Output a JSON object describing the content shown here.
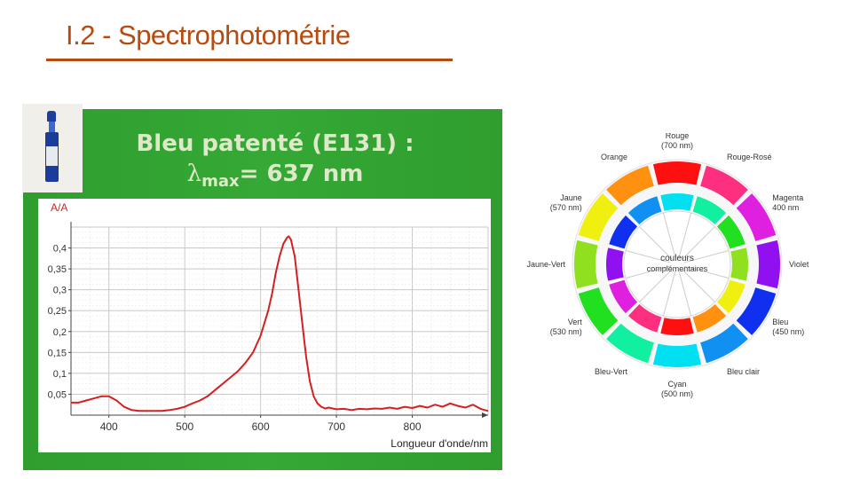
{
  "slide": {
    "title": "I.2 - Spectrophotométrie"
  },
  "vial_image": {
    "icon": "blue-dye-vial-icon"
  },
  "chart_heading": {
    "line1": "Bleu patenté (E131) :",
    "lambda_symbol": "λ",
    "lambda_sub": "max",
    "lambda_value": "= 637 nm"
  },
  "chart_data": {
    "type": "line",
    "title": "Bleu patenté (E131) : λmax= 637 nm",
    "ylabel": "A/A",
    "xlabel": "Longueur d'onde/nm",
    "xlim": [
      350,
      900
    ],
    "ylim": [
      0,
      0.45
    ],
    "x_ticks": [
      400,
      500,
      600,
      700,
      800
    ],
    "x_tick_labels": [
      "400",
      "500",
      "600",
      "700",
      "800"
    ],
    "y_ticks": [
      0.05,
      0.1,
      0.15,
      0.2,
      0.25,
      0.3,
      0.35,
      0.4
    ],
    "y_tick_labels": [
      "0,05",
      "0,1",
      "0,15",
      "0,2",
      "0,25",
      "0,3",
      "0,35",
      "0,4"
    ],
    "grid": true,
    "series_color": "#d42020",
    "series": [
      {
        "x": [
          350,
          360,
          370,
          380,
          390,
          400,
          410,
          420,
          430,
          440,
          450,
          460,
          470,
          480,
          490,
          500,
          510,
          520,
          530,
          540,
          550,
          560,
          570,
          580,
          590,
          600,
          610,
          615,
          620,
          625,
          630,
          635,
          637,
          640,
          645,
          650,
          655,
          660,
          665,
          670,
          675,
          680,
          685,
          690,
          695,
          700,
          710,
          720,
          730,
          740,
          750,
          760,
          770,
          780,
          790,
          800,
          810,
          820,
          830,
          840,
          850,
          860,
          870,
          880,
          890,
          900
        ],
        "y": [
          0.03,
          0.03,
          0.035,
          0.04,
          0.045,
          0.045,
          0.035,
          0.02,
          0.012,
          0.01,
          0.01,
          0.01,
          0.01,
          0.012,
          0.015,
          0.02,
          0.028,
          0.035,
          0.045,
          0.06,
          0.075,
          0.09,
          0.105,
          0.125,
          0.15,
          0.19,
          0.25,
          0.29,
          0.34,
          0.38,
          0.41,
          0.425,
          0.428,
          0.42,
          0.38,
          0.3,
          0.22,
          0.14,
          0.08,
          0.045,
          0.028,
          0.02,
          0.016,
          0.018,
          0.016,
          0.014,
          0.015,
          0.012,
          0.015,
          0.014,
          0.016,
          0.015,
          0.018,
          0.015,
          0.02,
          0.017,
          0.022,
          0.018,
          0.025,
          0.02,
          0.028,
          0.022,
          0.018,
          0.025,
          0.015,
          0.01
        ]
      }
    ]
  },
  "color_wheel": {
    "center_line1": "couleurs",
    "center_line2": "complémentaires",
    "segments": [
      "#ff1010",
      "#ff2f80",
      "#e020e0",
      "#9010f0",
      "#1030f0",
      "#1090f0",
      "#00e0f0",
      "#10f0a0",
      "#20e020",
      "#90e020",
      "#f0f010",
      "#ff9010"
    ],
    "labels": [
      {
        "line1": "Rouge",
        "line2": "(700 nm)"
      },
      {
        "line1": "Rouge-Rosé",
        "line2": ""
      },
      {
        "line1": "Magenta",
        "line2": "400 nm"
      },
      {
        "line1": "Violet",
        "line2": ""
      },
      {
        "line1": "Bleu",
        "line2": "(450 nm)"
      },
      {
        "line1": "Bleu clair",
        "line2": ""
      },
      {
        "line1": "Cyan",
        "line2": "(500 nm)"
      },
      {
        "line1": "Bleu-Vert",
        "line2": ""
      },
      {
        "line1": "Vert",
        "line2": "(530 nm)"
      },
      {
        "line1": "Jaune-Vert",
        "line2": ""
      },
      {
        "line1": "Jaune",
        "line2": "(570 nm)"
      },
      {
        "line1": "Orange",
        "line2": ""
      }
    ]
  }
}
